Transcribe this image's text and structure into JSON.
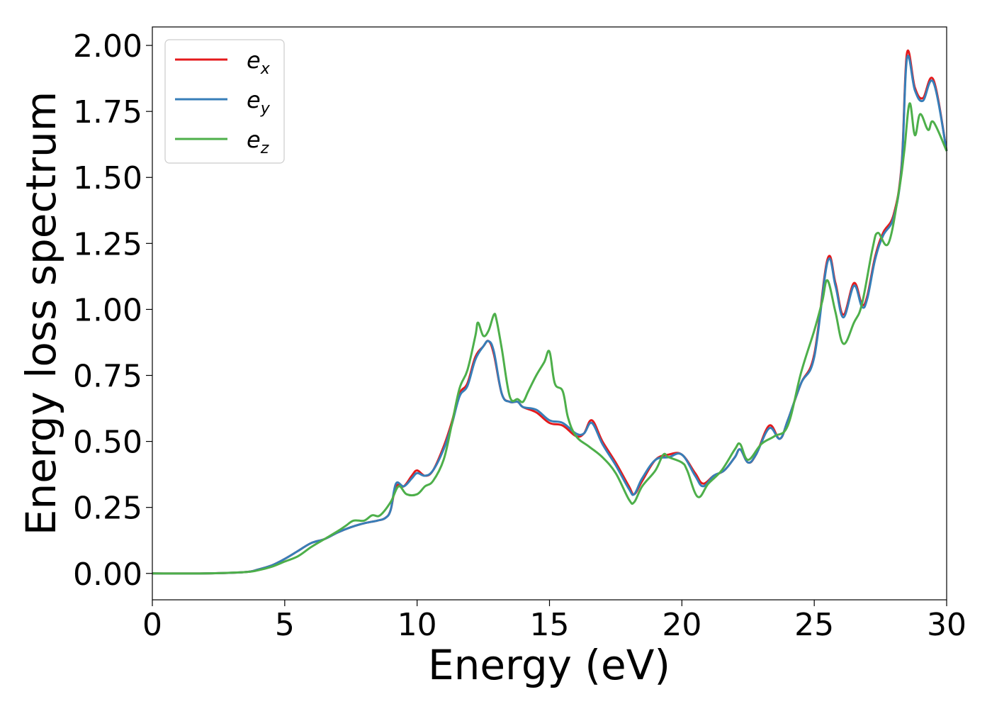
{
  "chart_data": {
    "type": "line",
    "title": "",
    "xlabel": "Energy (eV)",
    "ylabel": "Energy loss spectrum",
    "xlim": [
      0,
      30
    ],
    "ylim": [
      -0.1,
      2.07
    ],
    "xticks": [
      "0",
      "5",
      "10",
      "15",
      "20",
      "25",
      "30"
    ],
    "yticks": [
      "0.00",
      "0.25",
      "0.50",
      "0.75",
      "1.00",
      "1.25",
      "1.50",
      "1.75",
      "2.00"
    ],
    "grid": false,
    "legend_position": "top-left",
    "series": [
      {
        "name": "e_x",
        "label_base": "e",
        "label_sub": "x",
        "color": "#e41a1c",
        "x": [
          0,
          2,
          3.5,
          4.0,
          4.5,
          5.0,
          5.5,
          6.0,
          6.5,
          7.0,
          7.5,
          8.0,
          8.5,
          8.8,
          9.0,
          9.2,
          9.5,
          9.8,
          10.0,
          10.3,
          10.6,
          11.0,
          11.3,
          11.6,
          11.9,
          12.2,
          12.5,
          12.7,
          12.9,
          13.2,
          13.5,
          13.8,
          14.0,
          14.5,
          15.0,
          15.5,
          16.0,
          16.3,
          16.6,
          17.0,
          17.5,
          18.0,
          18.2,
          18.5,
          19.0,
          19.5,
          20.0,
          20.5,
          20.8,
          21.2,
          21.6,
          22.0,
          22.2,
          22.5,
          22.8,
          23.3,
          23.7,
          24.0,
          24.5,
          25.0,
          25.5,
          25.8,
          26.1,
          26.5,
          26.8,
          27.0,
          27.3,
          27.6,
          28.0,
          28.3,
          28.5,
          28.8,
          29.1,
          29.5,
          30.0
        ],
        "y": [
          0.0,
          0.0,
          0.005,
          0.015,
          0.03,
          0.055,
          0.085,
          0.115,
          0.13,
          0.155,
          0.175,
          0.19,
          0.2,
          0.21,
          0.24,
          0.33,
          0.33,
          0.37,
          0.39,
          0.37,
          0.39,
          0.48,
          0.57,
          0.68,
          0.72,
          0.82,
          0.86,
          0.88,
          0.83,
          0.68,
          0.65,
          0.65,
          0.63,
          0.61,
          0.57,
          0.56,
          0.52,
          0.53,
          0.58,
          0.5,
          0.42,
          0.33,
          0.3,
          0.35,
          0.43,
          0.45,
          0.45,
          0.38,
          0.34,
          0.37,
          0.39,
          0.44,
          0.47,
          0.42,
          0.45,
          0.56,
          0.51,
          0.58,
          0.72,
          0.83,
          1.19,
          1.1,
          0.98,
          1.1,
          1.02,
          1.05,
          1.2,
          1.29,
          1.36,
          1.55,
          1.97,
          1.84,
          1.8,
          1.87,
          1.6
        ]
      },
      {
        "name": "e_y",
        "label_base": "e",
        "label_sub": "y",
        "color": "#377eb8",
        "x": [
          0,
          2,
          3.5,
          4.0,
          4.5,
          5.0,
          5.5,
          6.0,
          6.5,
          7.0,
          7.5,
          8.0,
          8.5,
          8.8,
          9.0,
          9.2,
          9.5,
          9.8,
          10.0,
          10.3,
          10.6,
          11.0,
          11.3,
          11.6,
          11.9,
          12.2,
          12.5,
          12.7,
          12.9,
          13.2,
          13.5,
          13.8,
          14.0,
          14.5,
          15.0,
          15.5,
          16.0,
          16.3,
          16.6,
          17.0,
          17.5,
          18.0,
          18.2,
          18.5,
          19.0,
          19.5,
          20.0,
          20.5,
          20.8,
          21.2,
          21.6,
          22.0,
          22.2,
          22.5,
          22.8,
          23.3,
          23.7,
          24.0,
          24.5,
          25.0,
          25.5,
          25.8,
          26.1,
          26.5,
          26.8,
          27.0,
          27.3,
          27.6,
          28.0,
          28.3,
          28.5,
          28.8,
          29.1,
          29.5,
          30.0
        ],
        "y": [
          0.0,
          0.0,
          0.005,
          0.015,
          0.03,
          0.055,
          0.085,
          0.115,
          0.13,
          0.155,
          0.175,
          0.19,
          0.2,
          0.21,
          0.24,
          0.34,
          0.33,
          0.36,
          0.38,
          0.37,
          0.39,
          0.47,
          0.56,
          0.67,
          0.71,
          0.81,
          0.86,
          0.88,
          0.84,
          0.68,
          0.65,
          0.65,
          0.63,
          0.62,
          0.58,
          0.57,
          0.53,
          0.53,
          0.57,
          0.49,
          0.41,
          0.32,
          0.3,
          0.36,
          0.43,
          0.44,
          0.45,
          0.37,
          0.33,
          0.37,
          0.39,
          0.44,
          0.47,
          0.42,
          0.45,
          0.55,
          0.51,
          0.58,
          0.72,
          0.82,
          1.18,
          1.09,
          0.97,
          1.09,
          1.01,
          1.04,
          1.19,
          1.28,
          1.35,
          1.54,
          1.95,
          1.83,
          1.79,
          1.86,
          1.6
        ]
      },
      {
        "name": "e_z",
        "label_base": "e",
        "label_sub": "z",
        "color": "#4daf4a",
        "x": [
          0,
          2,
          3.5,
          4.0,
          4.5,
          5.0,
          5.5,
          6.0,
          6.5,
          7.0,
          7.3,
          7.6,
          8.0,
          8.3,
          8.6,
          9.0,
          9.3,
          9.6,
          10.0,
          10.3,
          10.6,
          11.0,
          11.3,
          11.6,
          11.9,
          12.2,
          12.3,
          12.5,
          12.7,
          12.9,
          13.0,
          13.2,
          13.5,
          13.8,
          14.0,
          14.2,
          14.5,
          14.8,
          15.0,
          15.2,
          15.5,
          15.7,
          16.0,
          16.5,
          17.0,
          17.5,
          18.0,
          18.2,
          18.5,
          19.0,
          19.3,
          19.5,
          20.0,
          20.2,
          20.6,
          21.0,
          21.5,
          22.0,
          22.2,
          22.5,
          23.0,
          23.5,
          24.0,
          24.5,
          25.0,
          25.3,
          25.5,
          25.8,
          26.1,
          26.5,
          26.8,
          27.2,
          27.4,
          27.8,
          28.2,
          28.4,
          28.6,
          28.8,
          29.0,
          29.3,
          29.5,
          30.0
        ],
        "y": [
          0.0,
          0.0,
          0.005,
          0.012,
          0.025,
          0.045,
          0.065,
          0.1,
          0.13,
          0.16,
          0.18,
          0.2,
          0.2,
          0.22,
          0.22,
          0.27,
          0.33,
          0.3,
          0.3,
          0.33,
          0.35,
          0.43,
          0.56,
          0.7,
          0.77,
          0.9,
          0.95,
          0.9,
          0.92,
          0.98,
          0.96,
          0.85,
          0.67,
          0.66,
          0.65,
          0.69,
          0.75,
          0.8,
          0.84,
          0.72,
          0.69,
          0.59,
          0.52,
          0.48,
          0.44,
          0.38,
          0.28,
          0.27,
          0.33,
          0.39,
          0.45,
          0.44,
          0.42,
          0.39,
          0.29,
          0.34,
          0.39,
          0.47,
          0.49,
          0.43,
          0.49,
          0.52,
          0.56,
          0.76,
          0.92,
          1.03,
          1.11,
          0.99,
          0.87,
          0.95,
          1.02,
          1.23,
          1.29,
          1.25,
          1.45,
          1.6,
          1.78,
          1.66,
          1.74,
          1.68,
          1.71,
          1.6
        ]
      }
    ]
  }
}
